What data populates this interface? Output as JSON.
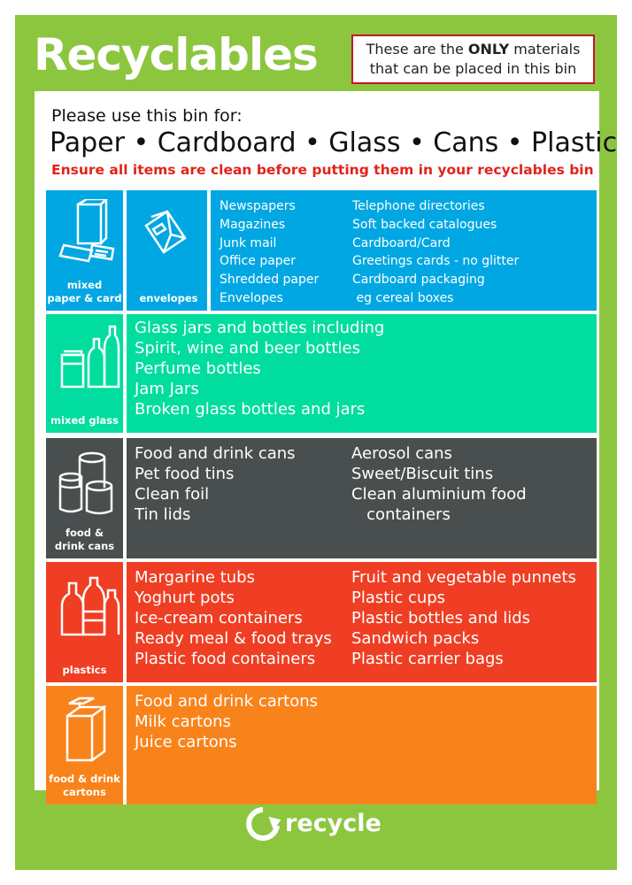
{
  "header": {
    "title": "Recyclables",
    "notice_line1_pre": "These are the ",
    "notice_line1_bold": "ONLY",
    "notice_line1_post": " materials",
    "notice_line2": "that can be placed in this bin"
  },
  "intro": {
    "lead": "Please use this bin for:",
    "materials": "Paper • Cardboard • Glass • Cans • Plastic",
    "warning": "Ensure all items are clean before putting them in your recyclables bin"
  },
  "sections": {
    "paper": {
      "color": "#00a7e3",
      "icon1_label_1": "mixed",
      "icon1_label_2": "paper & card",
      "icon2_label": "envelopes",
      "col1": [
        "Newspapers",
        "Magazines",
        "Junk mail",
        "Office paper",
        "Shredded paper",
        "Envelopes"
      ],
      "col2": [
        "Telephone directories",
        "Soft backed  catalogues",
        "Cardboard/Card",
        "Greetings cards - no glitter",
        "Cardboard packaging",
        " eg cereal boxes"
      ]
    },
    "glass": {
      "color": "#00dd9e",
      "icon_label": "mixed glass",
      "col1": [
        "Glass jars and bottles including",
        "Spirit, wine and beer bottles",
        "Perfume bottles",
        "Jam Jars",
        "Broken glass bottles and jars"
      ]
    },
    "cans": {
      "color": "#494e4e",
      "icon_label_1": "food &",
      "icon_label_2": "drink cans",
      "col1": [
        "Food and drink cans",
        "Pet food tins",
        "Clean foil",
        "Tin lids"
      ],
      "col2": [
        "Aerosol cans",
        "Sweet/Biscuit tins",
        "Clean aluminium food",
        "   containers"
      ]
    },
    "plastics": {
      "color": "#ef3e23",
      "icon_label": "plastics",
      "col1": [
        "Margarine tubs",
        "Yoghurt pots",
        "Ice-cream containers",
        "Ready meal & food trays",
        "Plastic food containers"
      ],
      "col2": [
        "Fruit and vegetable punnets",
        "Plastic cups",
        "Plastic bottles and lids",
        "Sandwich packs",
        "Plastic carrier bags"
      ]
    },
    "cartons": {
      "color": "#f9831b",
      "icon_label_1": "food & drink",
      "icon_label_2": "cartons",
      "col1": [
        "Food and drink cartons",
        "Milk cartons",
        "Juice cartons"
      ]
    }
  },
  "footer": {
    "logo_text": "recycle",
    "logo_icon": "recycle-arrow-icon"
  },
  "colors": {
    "brand_green": "#8cc63f",
    "warning_red": "#e2231a"
  }
}
